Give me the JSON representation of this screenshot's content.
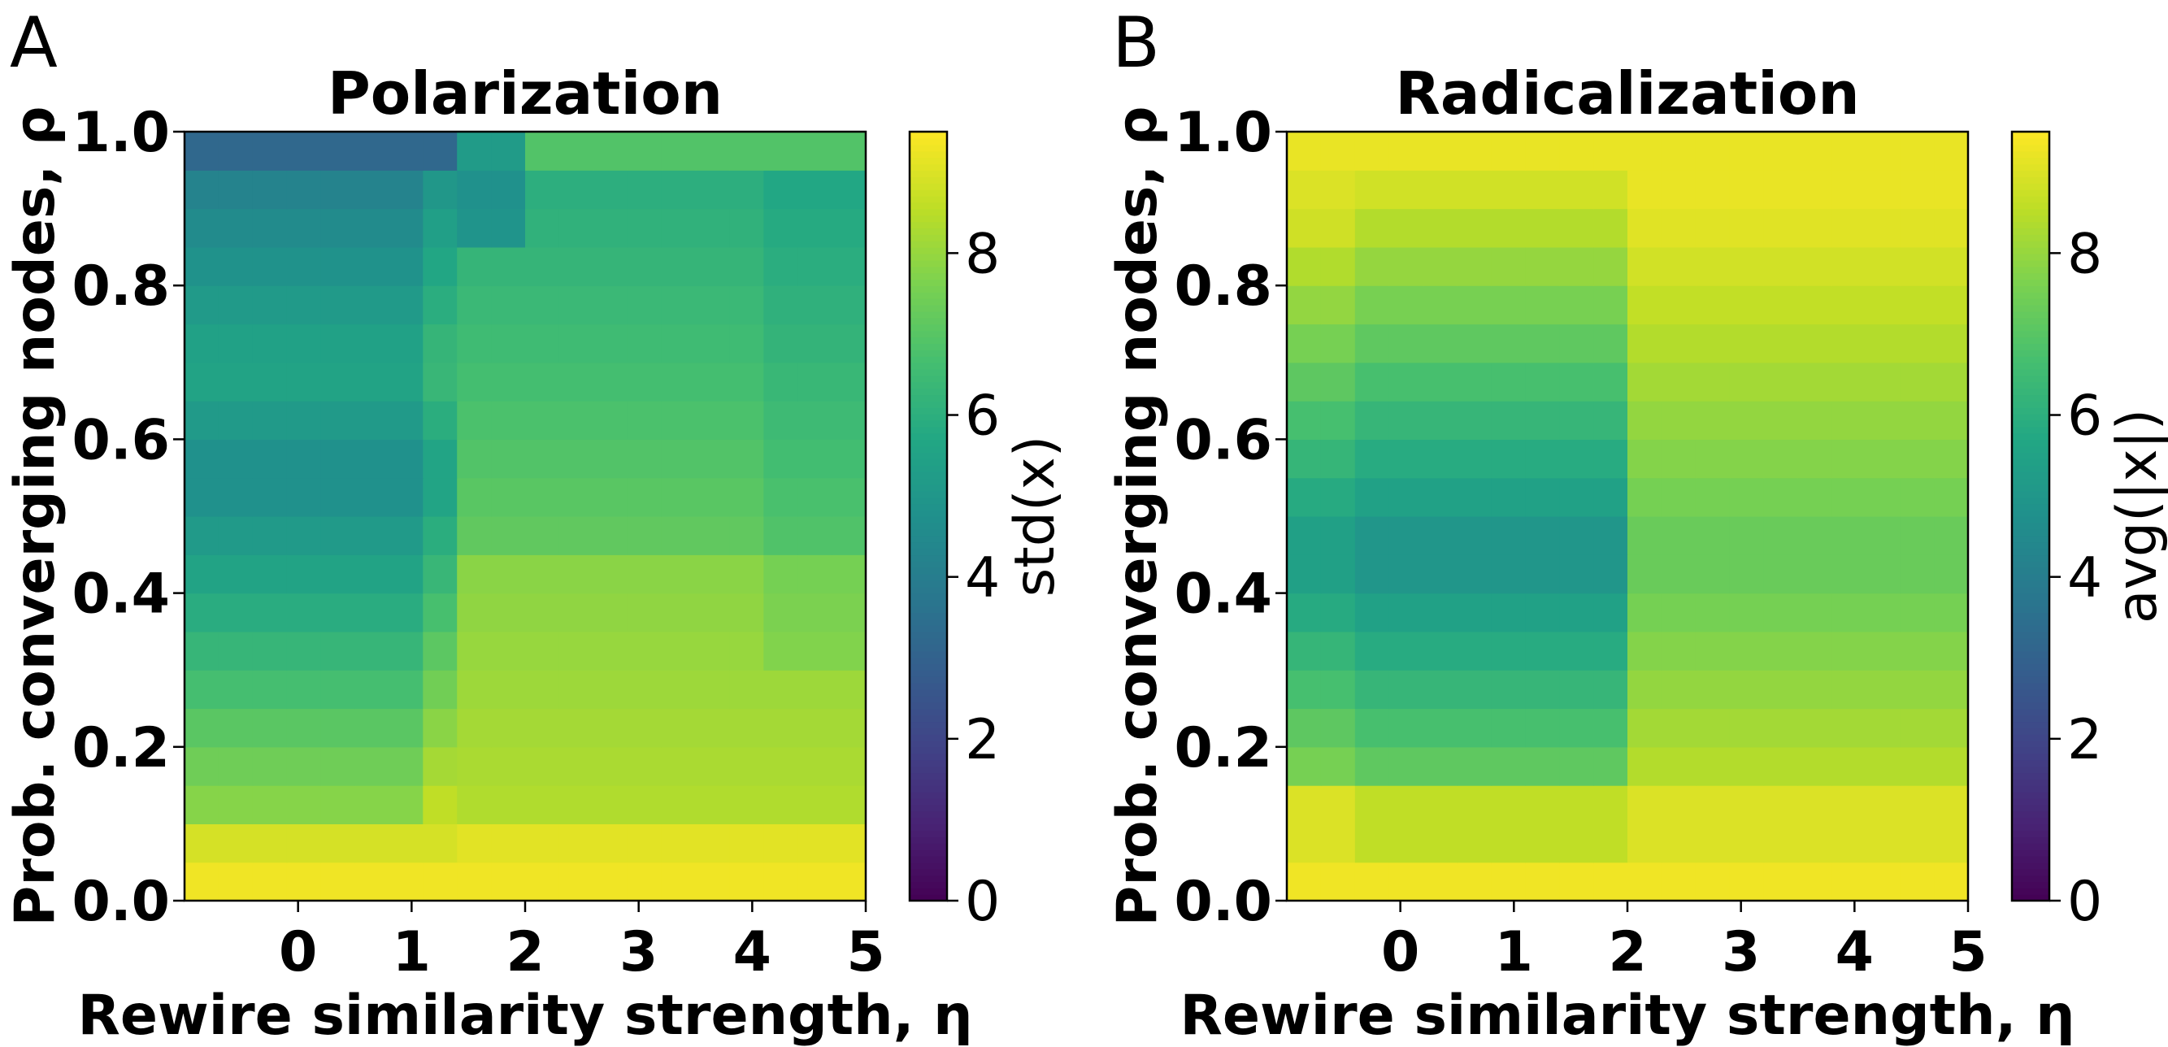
{
  "chart_data": [
    {
      "panel": "A",
      "type": "heatmap",
      "title": "Polarization",
      "xlabel": "Rewire similarity strength, η",
      "ylabel": "Prob. converging nodes, ρ",
      "colorbar_label": "std(x)",
      "xlim": [
        -1,
        5
      ],
      "ylim": [
        0,
        1
      ],
      "clim": [
        0,
        9.5
      ],
      "colormap": "viridis",
      "xticks": [
        "0",
        "1",
        "2",
        "3",
        "4",
        "5"
      ],
      "yticks": [
        "0.0",
        "0.2",
        "0.4",
        "0.6",
        "0.8",
        "1.0"
      ],
      "cbticks": [
        "0",
        "2",
        "4",
        "6",
        "8"
      ],
      "grid": "20 columns (η from -1 to 5) × 20 rows (ρ from 0 to 1); values are std(x) per cell",
      "grid_rows": 20,
      "grid_cols": 20
    },
    {
      "panel": "B",
      "type": "heatmap",
      "title": "Radicalization",
      "xlabel": "Rewire similarity strength, η",
      "ylabel": "Prob. converging nodes, ρ",
      "colorbar_label": "avg(|x|)",
      "xlim": [
        -1,
        5
      ],
      "ylim": [
        0,
        1
      ],
      "clim": [
        0,
        9.5
      ],
      "colormap": "viridis",
      "xticks": [
        "0",
        "1",
        "2",
        "3",
        "4",
        "5"
      ],
      "yticks": [
        "0.0",
        "0.2",
        "0.4",
        "0.6",
        "0.8",
        "1.0"
      ],
      "cbticks": [
        "0",
        "2",
        "4",
        "6",
        "8"
      ],
      "grid_rows": 20,
      "grid_cols": 20
    }
  ]
}
